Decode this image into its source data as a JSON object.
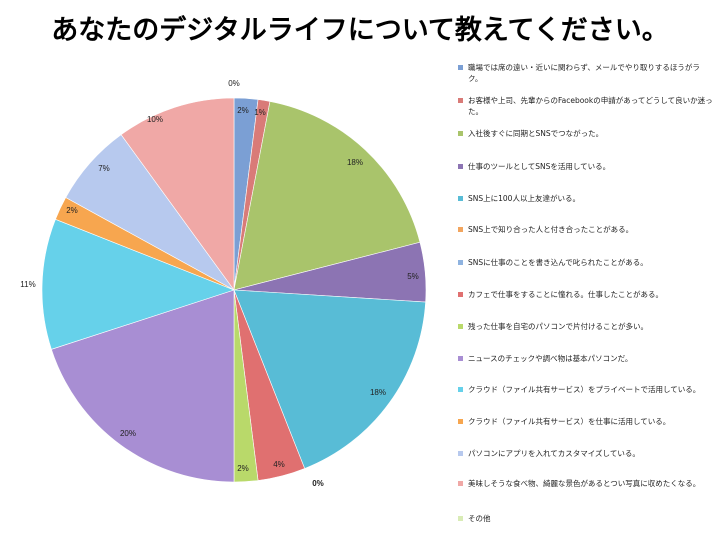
{
  "title": "あなたのデジタルライフについて教えてください。",
  "chart_data": {
    "type": "pie",
    "title": "あなたのデジタルライフについて教えてください。",
    "legend_position": "right",
    "labels": [
      "職場では席の遠い・近いに関わらず、メールでやり取りするほうがラク。",
      "お客様や上司、先輩からのFacebookの申請があってどうして良いか迷った。",
      "入社後すぐに同期とSNSでつながった。",
      "仕事のツールとしてSNSを活用している。",
      "SNS上に100人以上友達がいる。",
      "SNS上で知り合った人と付き合ったことがある。",
      "SNSに仕事のことを書き込んで叱られたことがある。",
      "カフェで仕事をすることに憧れる。仕事したことがある。",
      "残った仕事を自宅のパソコンで片付けることが多い。",
      "ニュースのチェックや調べ物は基本パソコンだ。",
      "クラウド（ファイル共有サービス）をプライベートで活用している。",
      "クラウド（ファイル共有サービス）を仕事に活用している。",
      "パソコンにアプリを入れてカスタマイズしている。",
      "美味しそうな食べ物、綺麗な景色があるとつい写真に収めたくなる。",
      "その他"
    ],
    "values": [
      2,
      1,
      18,
      5,
      18,
      0,
      0,
      4,
      2,
      20,
      11,
      2,
      7,
      10,
      0
    ],
    "value_labels": [
      "2%",
      "1%",
      "18%",
      "5%",
      "18%",
      "",
      "0%",
      "4%",
      "2%",
      "20%",
      "11%",
      "2%",
      "7%",
      "10%",
      "0%"
    ],
    "colors": [
      "#7b9fd4",
      "#d97b78",
      "#a9c46b",
      "#8c74b3",
      "#58bcd6",
      "#f2a55f",
      "#8fb3e0",
      "#e07070",
      "#b9d96a",
      "#a88ed3",
      "#66d1ea",
      "#f7a64f",
      "#b7c9ee",
      "#f0a8a6",
      "#d9ecb6"
    ]
  }
}
